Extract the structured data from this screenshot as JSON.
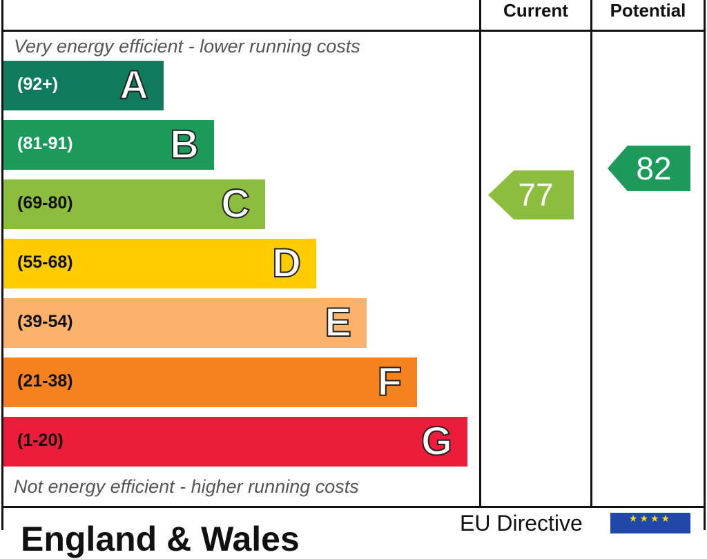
{
  "chart_data": {
    "type": "bar",
    "columns": [
      "Current",
      "Potential"
    ],
    "top_note": "Very energy efficient - lower running costs",
    "bottom_note": "Not energy efficient - higher running costs",
    "bands": [
      {
        "letter": "A",
        "range": "(92+)",
        "color": "#107a5c",
        "text": "#ffffff"
      },
      {
        "letter": "B",
        "range": "(81-91)",
        "color": "#1b9a5a",
        "text": "#ffffff"
      },
      {
        "letter": "C",
        "range": "(69-80)",
        "color": "#8dbd3e",
        "text": "#111111"
      },
      {
        "letter": "D",
        "range": "(55-68)",
        "color": "#ffcc00",
        "text": "#111111"
      },
      {
        "letter": "E",
        "range": "(39-54)",
        "color": "#fbb26b",
        "text": "#111111"
      },
      {
        "letter": "F",
        "range": "(21-38)",
        "color": "#f5821f",
        "text": "#111111"
      },
      {
        "letter": "G",
        "range": "(1-20)",
        "color": "#ec1d3b",
        "text": "#111111"
      }
    ],
    "current": {
      "value": "77",
      "band": "C",
      "color": "#8dbd3e"
    },
    "potential": {
      "value": "82",
      "band": "B",
      "color": "#1b9a5a"
    }
  },
  "footer": {
    "region": "England & Wales",
    "directive": "EU Directive"
  }
}
